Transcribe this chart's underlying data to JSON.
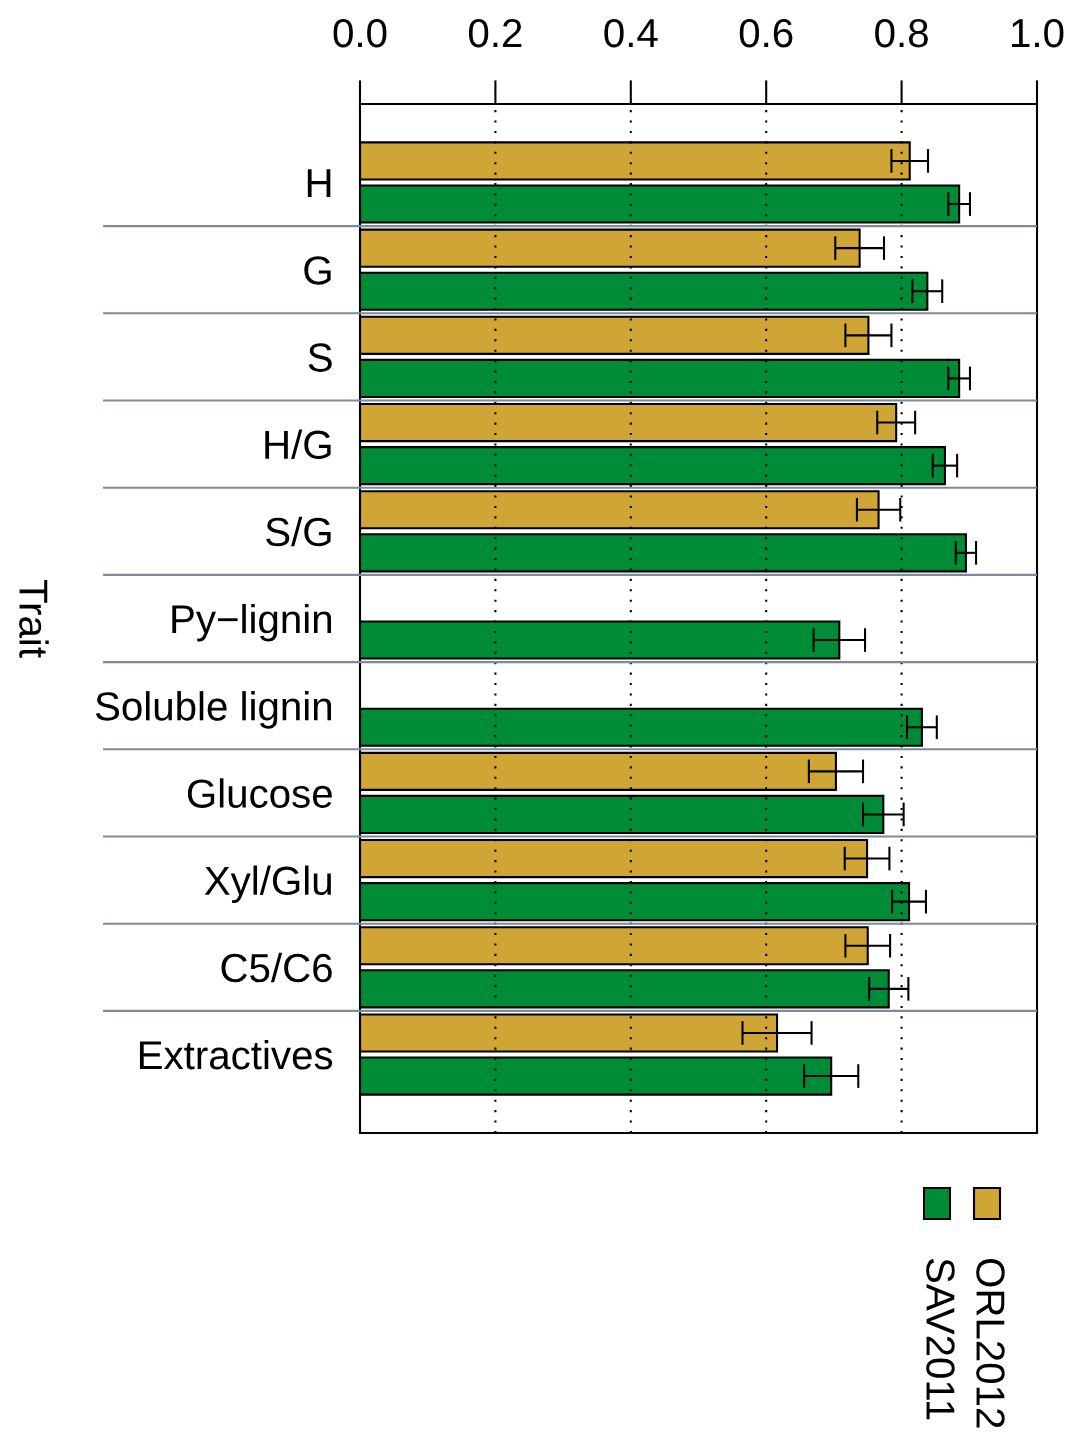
{
  "chart_data": {
    "type": "bar",
    "orientation": "horizontal",
    "ylabel": "Trait",
    "categories": [
      "H",
      "G",
      "S",
      "H/G",
      "S/G",
      "Py−lignin",
      "Soluble lignin",
      "Glucose",
      "Xyl/Glu",
      "C5/C6",
      "Extractives"
    ],
    "series": [
      {
        "name": "ORL2012",
        "color": "#cfa636",
        "values": [
          0.812,
          0.738,
          0.751,
          0.792,
          0.766,
          null,
          null,
          0.703,
          0.749,
          0.75,
          0.616
        ],
        "errors": [
          0.027,
          0.036,
          0.034,
          0.028,
          0.032,
          null,
          null,
          0.04,
          0.033,
          0.033,
          0.051
        ]
      },
      {
        "name": "SAV2011",
        "color": "#008c36",
        "values": [
          0.885,
          0.838,
          0.885,
          0.864,
          0.895,
          0.708,
          0.83,
          0.773,
          0.811,
          0.781,
          0.696
        ],
        "errors": [
          0.016,
          0.022,
          0.016,
          0.018,
          0.015,
          0.038,
          0.022,
          0.03,
          0.025,
          0.029,
          0.04
        ]
      }
    ],
    "xlim": [
      0,
      1
    ],
    "xticks": [
      {
        "value": 0,
        "label": "0.0"
      },
      0.2,
      0.4,
      0.6,
      0.8,
      {
        "value": 1,
        "label": "1.0"
      }
    ],
    "grid": "x",
    "legend": "bottom right"
  }
}
